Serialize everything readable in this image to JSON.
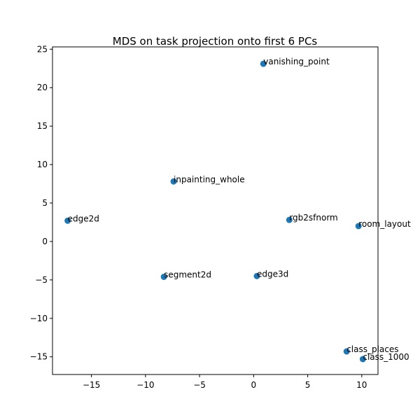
{
  "chart_data": {
    "type": "scatter",
    "title": "MDS on task projection onto first 6 PCs",
    "xlabel": "",
    "ylabel": "",
    "xlim": [
      -18.6,
      11.5
    ],
    "ylim": [
      -17.3,
      25.3
    ],
    "xticks": [
      -15,
      -10,
      -5,
      0,
      5,
      10
    ],
    "yticks": [
      -15,
      -10,
      -5,
      0,
      5,
      10,
      15,
      20,
      25
    ],
    "grid": false,
    "color": "#1f77b4",
    "points": [
      {
        "label": "vanishing_point",
        "x": 0.9,
        "y": 23.1
      },
      {
        "label": "inpainting_whole",
        "x": -7.4,
        "y": 7.8
      },
      {
        "label": "edge2d",
        "x": -17.2,
        "y": 2.7
      },
      {
        "label": "rgb2sfnorm",
        "x": 3.3,
        "y": 2.8
      },
      {
        "label": "room_layout",
        "x": 9.7,
        "y": 2.0
      },
      {
        "label": "segment2d",
        "x": -8.3,
        "y": -4.6
      },
      {
        "label": "edge3d",
        "x": 0.3,
        "y": -4.5
      },
      {
        "label": "class_places",
        "x": 8.6,
        "y": -14.3
      },
      {
        "label": "class_1000",
        "x": 10.1,
        "y": -15.3
      }
    ]
  }
}
